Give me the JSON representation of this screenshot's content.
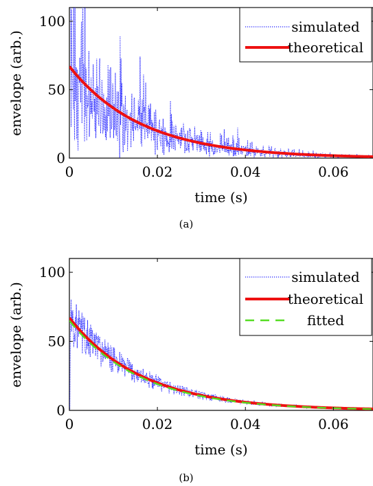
{
  "chart_data": [
    {
      "type": "line",
      "caption": "(a)",
      "xlabel": "time (s)",
      "ylabel": "envelope (arb.)",
      "xlim": [
        0,
        0.069
      ],
      "ylim": [
        0,
        110
      ],
      "xticks": [
        0,
        0.02,
        0.04,
        0.06
      ],
      "xtick_labels": [
        "0",
        "0.02",
        "0.04",
        "0.06"
      ],
      "yticks": [
        0,
        50,
        100
      ],
      "ytick_labels": [
        "0",
        "50",
        "100"
      ],
      "grid": false,
      "legend_position": "top-right",
      "series": [
        {
          "name": "simulated",
          "style": "dotted",
          "color": "#1a1aff",
          "noise": "strong",
          "description": "noisy envelope fluctuating around the theoretical decay"
        },
        {
          "name": "theoretical",
          "style": "solid",
          "color": "#ee1111",
          "amplitude": 67,
          "decay_time_s": 0.0165
        }
      ]
    },
    {
      "type": "line",
      "caption": "(b)",
      "xlabel": "time (s)",
      "ylabel": "envelope (arb.)",
      "xlim": [
        0,
        0.069
      ],
      "ylim": [
        0,
        110
      ],
      "xticks": [
        0,
        0.02,
        0.04,
        0.06
      ],
      "xtick_labels": [
        "0",
        "0.02",
        "0.04",
        "0.06"
      ],
      "yticks": [
        0,
        50,
        100
      ],
      "ytick_labels": [
        "0",
        "50",
        "100"
      ],
      "grid": false,
      "legend_position": "top-right",
      "series": [
        {
          "name": "simulated",
          "style": "dotted",
          "color": "#1a1aff",
          "noise": "moderate",
          "description": "noisy envelope closely following the theoretical decay"
        },
        {
          "name": "theoretical",
          "style": "solid",
          "color": "#ee1111",
          "amplitude": 67,
          "decay_time_s": 0.0165
        },
        {
          "name": "fitted",
          "style": "dashed",
          "color": "#55dd22",
          "amplitude": 65,
          "decay_time_s": 0.0163
        }
      ]
    }
  ]
}
